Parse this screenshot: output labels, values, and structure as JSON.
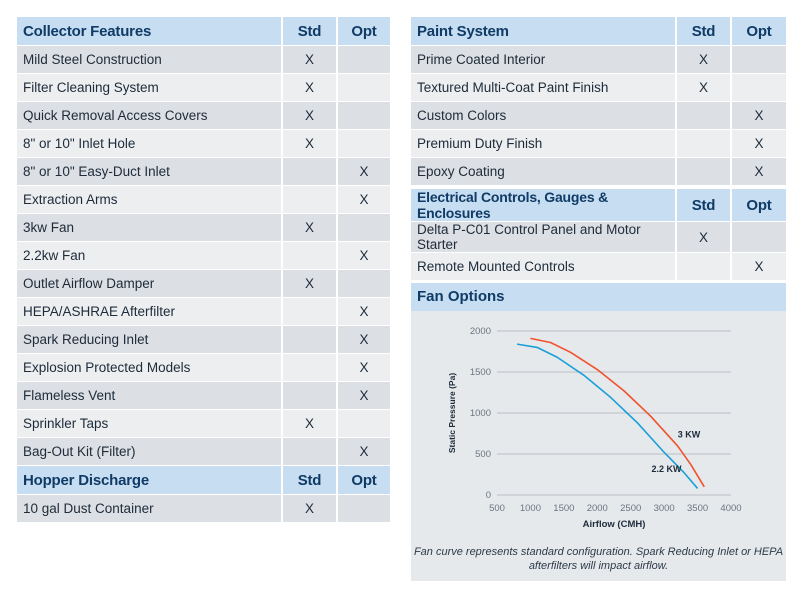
{
  "collector": {
    "title": "Collector Features",
    "std": "Std",
    "opt": "Opt",
    "rows": [
      {
        "label": "Mild Steel Construction",
        "std": "X",
        "opt": ""
      },
      {
        "label": "Filter Cleaning System",
        "std": "X",
        "opt": ""
      },
      {
        "label": "Quick Removal Access Covers",
        "std": "X",
        "opt": ""
      },
      {
        "label": "8\" or 10\" Inlet Hole",
        "std": "X",
        "opt": ""
      },
      {
        "label": "8\" or 10\" Easy-Duct Inlet",
        "std": "",
        "opt": "X"
      },
      {
        "label": "Extraction Arms",
        "std": "",
        "opt": "X"
      },
      {
        "label": "3kw Fan",
        "std": "X",
        "opt": ""
      },
      {
        "label": "2.2kw Fan",
        "std": "",
        "opt": "X"
      },
      {
        "label": "Outlet Airflow Damper",
        "std": "X",
        "opt": ""
      },
      {
        "label": "HEPA/ASHRAE Afterfilter",
        "std": "",
        "opt": "X"
      },
      {
        "label": "Spark Reducing Inlet",
        "std": "",
        "opt": "X"
      },
      {
        "label": "Explosion Protected Models",
        "std": "",
        "opt": "X"
      },
      {
        "label": "Flameless Vent",
        "std": "",
        "opt": "X"
      },
      {
        "label": "Sprinkler Taps",
        "std": "X",
        "opt": ""
      },
      {
        "label": "Bag-Out Kit (Filter)",
        "std": "",
        "opt": "X"
      }
    ]
  },
  "hopper": {
    "title": "Hopper Discharge",
    "std": "Std",
    "opt": "Opt",
    "rows": [
      {
        "label": "10 gal Dust Container",
        "std": "X",
        "opt": ""
      }
    ]
  },
  "paint": {
    "title": "Paint System",
    "std": "Std",
    "opt": "Opt",
    "rows": [
      {
        "label": "Prime Coated Interior",
        "std": "X",
        "opt": ""
      },
      {
        "label": "Textured Multi-Coat Paint Finish",
        "std": "X",
        "opt": ""
      },
      {
        "label": "Custom Colors",
        "std": "",
        "opt": "X"
      },
      {
        "label": "Premium Duty Finish",
        "std": "",
        "opt": "X"
      },
      {
        "label": "Epoxy Coating",
        "std": "",
        "opt": "X"
      }
    ]
  },
  "electrical": {
    "title": "Electrical Controls, Gauges & Enclosures",
    "std": "Std",
    "opt": "Opt",
    "rows": [
      {
        "label": "Delta P-C01 Control Panel and Motor Starter",
        "std": "X",
        "opt": ""
      },
      {
        "label": "Remote Mounted Controls",
        "std": "",
        "opt": "X"
      }
    ]
  },
  "fan": {
    "title": "Fan Options",
    "note": "Fan curve represents standard configuration. Spark Reducing Inlet or HEPA afterfilters will impact airflow."
  },
  "chart_data": {
    "type": "line",
    "xlabel": "Airflow (CMH)",
    "ylabel": "Static Pressure (Pa)",
    "xlim": [
      500,
      4000
    ],
    "ylim": [
      0,
      2000
    ],
    "xticks": [
      500,
      1000,
      1500,
      2000,
      2500,
      3000,
      3500,
      4000
    ],
    "yticks": [
      0,
      500,
      1000,
      1500,
      2000
    ],
    "grid": true,
    "series": [
      {
        "name": "3 KW",
        "color": "#f0522b",
        "x": [
          1000,
          1300,
          1600,
          2000,
          2400,
          2800,
          3200,
          3400,
          3600
        ],
        "y": [
          1910,
          1860,
          1740,
          1530,
          1270,
          960,
          600,
          370,
          100
        ]
      },
      {
        "name": "2.2 KW",
        "color": "#1a9fd8",
        "x": [
          800,
          1100,
          1400,
          1800,
          2200,
          2600,
          3000,
          3300,
          3500
        ],
        "y": [
          1840,
          1800,
          1680,
          1460,
          1190,
          880,
          520,
          270,
          80
        ]
      }
    ]
  }
}
